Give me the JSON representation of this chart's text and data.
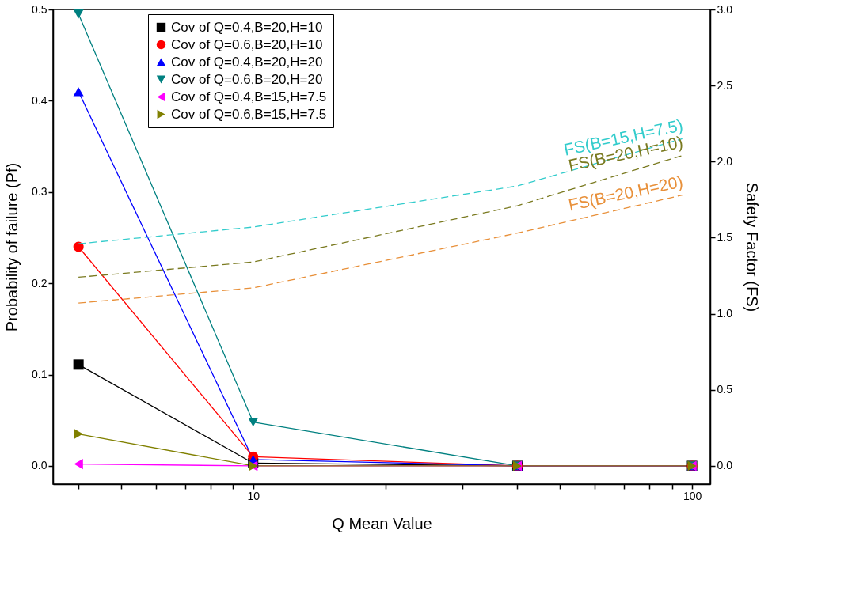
{
  "chart_data": {
    "type": "line",
    "xlabel": "Q Mean Value",
    "ylabel": "Probability of failure (Pf)",
    "y2label": "Safety Factor (FS)",
    "log": "x",
    "grid": false,
    "legend": "top",
    "line_style": "solid",
    "xlim": [
      3.5,
      110
    ],
    "xticks": [
      {
        "value": 4,
        "label": null
      },
      {
        "value": 5,
        "label": null
      },
      {
        "value": 6,
        "label": null
      },
      {
        "value": 7,
        "label": null
      },
      {
        "value": 8,
        "label": null
      },
      {
        "value": 9,
        "label": null
      },
      10,
      {
        "value": 20,
        "label": null
      },
      {
        "value": 30,
        "label": null
      },
      {
        "value": 40,
        "label": null
      },
      {
        "value": 50,
        "label": null
      },
      {
        "value": 60,
        "label": null
      },
      {
        "value": 70,
        "label": null
      },
      {
        "value": 80,
        "label": null
      },
      {
        "value": 90,
        "label": null
      },
      100
    ],
    "ylim": [
      -0.02,
      0.5
    ],
    "yticks": [
      {
        "value": 0,
        "label": "0.0"
      },
      0.1,
      0.2,
      0.3,
      0.4,
      0.5
    ],
    "y2lim": [
      -0.12,
      3.0
    ],
    "y2ticks": [
      {
        "value": 0,
        "label": "0.0"
      },
      0.5,
      {
        "value": 1,
        "label": "1.0"
      },
      1.5,
      {
        "value": 2,
        "label": "2.0"
      },
      2.5,
      {
        "value": 3,
        "label": "3.0"
      }
    ],
    "x": [
      4,
      10,
      40,
      100
    ],
    "series": [
      {
        "name": "Cov of Q=0.4,B=20,H=10",
        "color": "#000000",
        "marker": "square",
        "values": [
          0.111,
          0.003,
          0,
          0
        ]
      },
      {
        "name": "Cov of Q=0.6,B=20,H=10",
        "color": "#ff0000",
        "marker": "circle",
        "values": [
          0.24,
          0.01,
          0,
          0
        ]
      },
      {
        "name": "Cov of Q=0.4,B=20,H=20",
        "color": "#0000ff",
        "marker": "triangle",
        "values": [
          0.41,
          0.007,
          0,
          0
        ]
      },
      {
        "name": "Cov of Q=0.6,B=20,H=20",
        "color": "#008080",
        "marker": "triangle-down",
        "values": [
          0.495,
          0.048,
          0,
          0
        ]
      },
      {
        "name": "Cov of Q=0.4,B=15,H=7.5",
        "color": "#ff00ff",
        "marker": "triangle-left",
        "values": [
          0.002,
          0,
          0,
          0
        ]
      },
      {
        "name": "Cov of Q=0.6,B=15,H=7.5",
        "color": "#808000",
        "marker": "triangle-right",
        "values": [
          0.035,
          0,
          0,
          0
        ]
      },
      {
        "name": "FS(B=15,H=7.5)",
        "color": "#33cccc",
        "axis": "y2",
        "line_style": "dashed",
        "marker": "none",
        "x": [
          4,
          10,
          40,
          95
        ],
        "values": [
          1.46,
          1.57,
          1.84,
          2.15
        ]
      },
      {
        "name": "FS(B=20,H=10)",
        "color": "#7a7a20",
        "axis": "y2",
        "line_style": "dashed",
        "marker": "none",
        "x": [
          4,
          10,
          40,
          95
        ],
        "values": [
          1.24,
          1.34,
          1.71,
          2.04
        ]
      },
      {
        "name": "FS(B=20,H=20)",
        "color": "#e8903a",
        "axis": "y2",
        "line_style": "dashed",
        "marker": "none",
        "x": [
          4,
          10,
          40,
          95
        ],
        "values": [
          1.07,
          1.17,
          1.53,
          1.78
        ]
      }
    ]
  }
}
